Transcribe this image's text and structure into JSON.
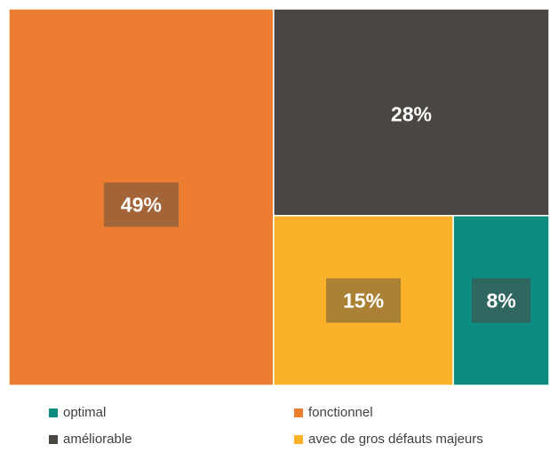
{
  "chart_data": {
    "type": "treemap",
    "title": "",
    "categories": [
      "optimal",
      "fonctionnel",
      "améliorable",
      "avec de gros défauts majeurs"
    ],
    "values": [
      8,
      49,
      28,
      15
    ],
    "labels": [
      "8%",
      "49%",
      "28%",
      "15%"
    ],
    "colors": [
      "#0E8C80",
      "#ED7D31",
      "#4A4743",
      "#FBB22A"
    ],
    "legend": "bottom"
  }
}
